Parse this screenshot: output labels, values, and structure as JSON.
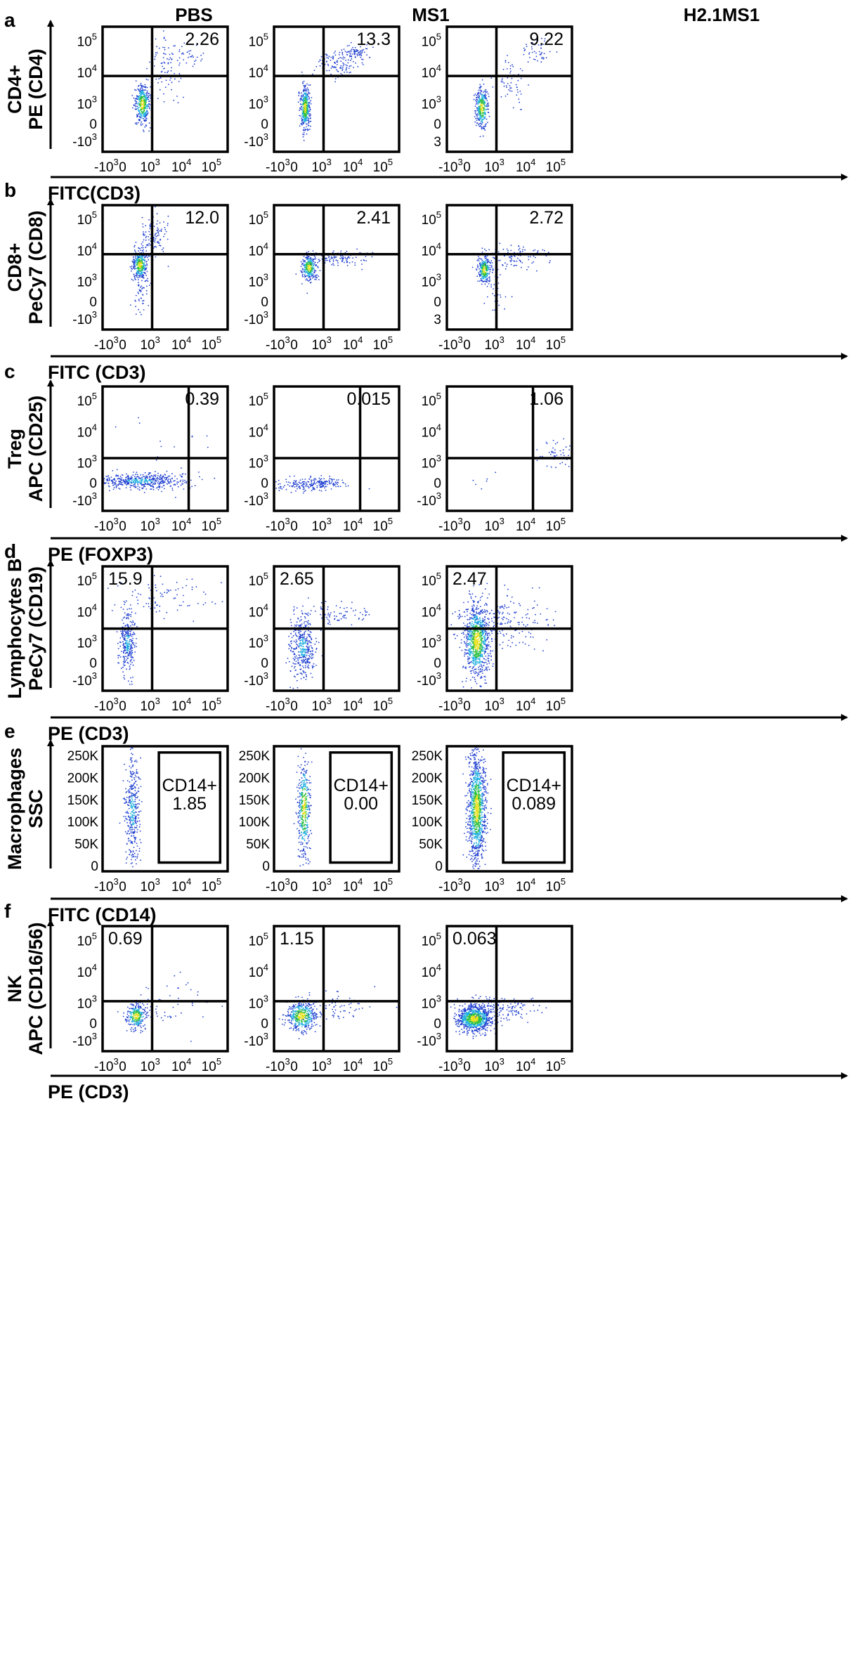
{
  "columns": [
    "PBS",
    "MS1",
    "H2.1MS1"
  ],
  "colors": {
    "sparse": "#1f3fd0",
    "mid": "#22b0e0",
    "dense": "#30c040",
    "core": "#e8e020",
    "frame": "#000000"
  },
  "chart_data": [
    {
      "type": "scatter",
      "panel": "a",
      "population": "CD4+",
      "ylabel": "PE (CD4)",
      "xlabel": "FITC(CD3)",
      "y_ticks": [
        "-10^3",
        "0",
        "10^3",
        "10^4",
        "10^5"
      ],
      "x_ticks": [
        "-10^3",
        "0",
        "10^3",
        "10^4",
        "10^5"
      ],
      "quadrant_gate": {
        "x": 300,
        "y": 8000
      },
      "plots": [
        {
          "condition": "PBS",
          "value": "2.26",
          "value_quadrant": "upper-right",
          "y_ticks": [
            "-10^3",
            "0",
            "10^3",
            "10^4",
            "10^5"
          ]
        },
        {
          "condition": "MS1",
          "value": "13.3",
          "value_quadrant": "upper-right",
          "y_ticks": [
            "-10^3",
            "0",
            "10^3",
            "10^4",
            "10^5"
          ]
        },
        {
          "condition": "H2.1MS1",
          "value": "9.22",
          "value_quadrant": "upper-right",
          "y_ticks": [
            "3",
            "0",
            "10^3",
            "10^4",
            "10^5"
          ]
        }
      ]
    },
    {
      "type": "scatter",
      "panel": "b",
      "population": "CD8+",
      "ylabel": "PeCy7 (CD8)",
      "xlabel": "FITC (CD3)",
      "y_ticks": [
        "-10^3",
        "0",
        "10^3",
        "10^4",
        "10^5"
      ],
      "x_ticks": [
        "-10^3",
        "0",
        "10^3",
        "10^4",
        "10^5"
      ],
      "quadrant_gate": {
        "x": 300,
        "y": 8000
      },
      "plots": [
        {
          "condition": "PBS",
          "value": "12.0",
          "value_quadrant": "upper-right",
          "y_ticks": [
            "-10^3",
            "0",
            "10^3",
            "10^4",
            "10^5"
          ]
        },
        {
          "condition": "MS1",
          "value": "2.41",
          "value_quadrant": "upper-right",
          "y_ticks": [
            "-10^3",
            "0",
            "10^3",
            "10^4",
            "10^5"
          ]
        },
        {
          "condition": "H2.1MS1",
          "value": "2.72",
          "value_quadrant": "upper-right",
          "y_ticks": [
            "3",
            "0",
            "10^3",
            "10^4",
            "10^5"
          ]
        }
      ]
    },
    {
      "type": "scatter",
      "panel": "c",
      "population": "Treg",
      "ylabel": "APC (CD25)",
      "xlabel": "PE (FOXP3)",
      "y_ticks": [
        "-10^3",
        "0",
        "10^3",
        "10^4",
        "10^5"
      ],
      "x_ticks": [
        "-10^3",
        "0",
        "10^3",
        "10^4",
        "10^5"
      ],
      "quadrant_gate": {
        "x": 4000,
        "y": 1500
      },
      "plots": [
        {
          "condition": "PBS",
          "value": "0.39",
          "value_quadrant": "upper-right",
          "y_ticks": [
            "-10^3",
            "0",
            "10^3",
            "10^4",
            "10^5"
          ]
        },
        {
          "condition": "MS1",
          "value": "0.015",
          "value_quadrant": "upper-right",
          "y_ticks": [
            "-10^3",
            "0",
            "10^3",
            "10^4",
            "10^5"
          ]
        },
        {
          "condition": "H2.1MS1",
          "value": "1.06",
          "value_quadrant": "upper-right",
          "y_ticks": [
            "-10^3",
            "0",
            "10^3",
            "10^4",
            "10^5"
          ]
        }
      ]
    },
    {
      "type": "scatter",
      "panel": "d",
      "population": "Lymphocytes B",
      "ylabel": "PeCy7 (CD19)",
      "xlabel": "PE (CD3)",
      "y_ticks": [
        "-10^3",
        "0",
        "10^3",
        "10^4",
        "10^5"
      ],
      "x_ticks": [
        "-10^3",
        "0",
        "10^3",
        "10^4",
        "10^5"
      ],
      "quadrant_gate": {
        "x": 300,
        "y": 3000
      },
      "plots": [
        {
          "condition": "PBS",
          "value": "15.9",
          "value_quadrant": "upper-left",
          "y_ticks": [
            "-10^3",
            "0",
            "10^3",
            "10^4",
            "10^5"
          ]
        },
        {
          "condition": "MS1",
          "value": "2.65",
          "value_quadrant": "upper-left",
          "y_ticks": [
            "-10^3",
            "0",
            "10^3",
            "10^4",
            "10^5"
          ]
        },
        {
          "condition": "H2.1MS1",
          "value": "2.47",
          "value_quadrant": "upper-left",
          "y_ticks": [
            "-10^3",
            "0",
            "10^3",
            "10^4",
            "10^5"
          ]
        }
      ]
    },
    {
      "type": "scatter",
      "panel": "e",
      "population": "Macrophages",
      "ylabel": "SSC",
      "xlabel": "FITC (CD14)",
      "y_ticks": [
        "0",
        "50K",
        "100K",
        "150K",
        "200K",
        "250K"
      ],
      "x_ticks": [
        "-10^3",
        "0",
        "10^3",
        "10^4",
        "10^5"
      ],
      "gate_label": "CD14+",
      "plots": [
        {
          "condition": "PBS",
          "gate_name": "CD14+",
          "value": "1.85"
        },
        {
          "condition": "MS1",
          "gate_name": "CD14+",
          "value": "0.00"
        },
        {
          "condition": "H2.1MS1",
          "gate_name": "CD14+",
          "value": "0.089"
        }
      ]
    },
    {
      "type": "scatter",
      "panel": "f",
      "population": "NK",
      "ylabel": "APC (CD16/56)",
      "xlabel": "PE (CD3)",
      "y_ticks": [
        "-10^3",
        "0",
        "10^3",
        "10^4",
        "10^5"
      ],
      "x_ticks": [
        "-10^3",
        "0",
        "10^3",
        "10^4",
        "10^5"
      ],
      "quadrant_gate": {
        "x": 300,
        "y": 1200
      },
      "plots": [
        {
          "condition": "PBS",
          "value": "0.69",
          "value_quadrant": "upper-left",
          "y_ticks": [
            "-10^3",
            "0",
            "10^3",
            "10^4",
            "10^5"
          ]
        },
        {
          "condition": "MS1",
          "value": "1.15",
          "value_quadrant": "upper-left",
          "y_ticks": [
            "-10^3",
            "0",
            "10^3",
            "10^4",
            "10^5"
          ]
        },
        {
          "condition": "H2.1MS1",
          "value": "0.063",
          "value_quadrant": "upper-left",
          "y_ticks": [
            "-10^3",
            "0",
            "10^3",
            "10^4",
            "10^5"
          ]
        }
      ]
    }
  ]
}
